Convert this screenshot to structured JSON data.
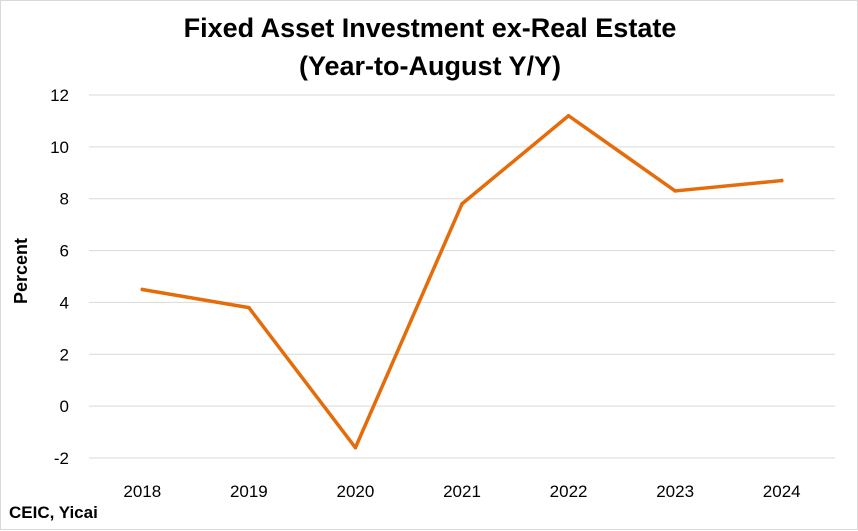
{
  "chart_data": {
    "type": "line",
    "title": [
      "Fixed Asset Investment ex-Real Estate",
      "(Year-to-August Y/Y)"
    ],
    "ylabel": "Percent",
    "xlabel": "",
    "categories": [
      "2018",
      "2019",
      "2020",
      "2021",
      "2022",
      "2023",
      "2024"
    ],
    "series": [
      {
        "values": [
          4.5,
          3.8,
          -1.6,
          7.8,
          11.2,
          8.3,
          8.7
        ],
        "color": "#e46c0a"
      }
    ],
    "ylim": [
      -2,
      12
    ],
    "yticks": [
      -2,
      0,
      2,
      4,
      6,
      8,
      10,
      12
    ],
    "grid": true,
    "legend": "none"
  },
  "source": "CEIC, Yicai"
}
